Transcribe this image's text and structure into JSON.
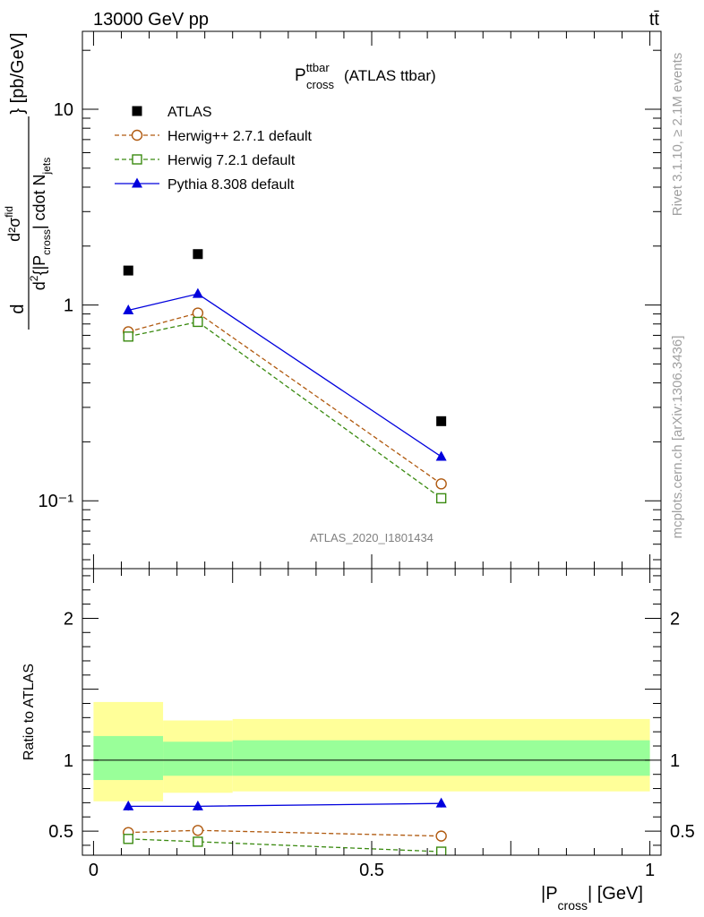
{
  "header": {
    "left": "13000 GeV pp",
    "right": "tt̄"
  },
  "side_labels": {
    "rivet": "Rivet 3.1.10, ≥ 2.1M events",
    "mcplots": "mcplots.cern.ch [arXiv:1306.3436]"
  },
  "chart_data": [
    {
      "type": "scatter",
      "title": {
        "main": "P",
        "sup": "ttbar",
        "sub": "cross",
        "suffix": "(ATLAS ttbar)"
      },
      "analysis_label": "ATLAS_2020_I1801434",
      "ylabel": "d²σᶠⁱᵈ / d²{|P_cross| cdot N_jets} [pb/GeV]",
      "ylabel_parts": {
        "num": "d²σ",
        "num_sup": "fid",
        "den_a": "d",
        "den_sup": "2",
        "den_b": "{|P",
        "den_sub1": "cross",
        "den_c": "| cdot N",
        "den_sub2": "jets",
        "tail": "} [pb/GeV]",
        "lead": "d"
      },
      "yscale": "log",
      "ylim": [
        0.045,
        25
      ],
      "xlim": [
        -0.02,
        1.02
      ],
      "yticks": [
        {
          "value": 10,
          "label": "10"
        },
        {
          "value": 1,
          "label": "1"
        },
        {
          "value": 0.1,
          "label": "10⁻¹"
        }
      ],
      "legend_position": "top-left",
      "series": [
        {
          "name": "ATLAS",
          "color": "#000000",
          "marker": "filled-square",
          "line": "none",
          "x": [
            0.0625,
            0.1875,
            0.625
          ],
          "y": [
            1.5,
            1.82,
            0.255
          ]
        },
        {
          "name": "Herwig++ 2.7.1 default",
          "color": "#b05a10",
          "marker": "open-circle",
          "line": "dashed",
          "x": [
            0.0625,
            0.1875,
            0.625
          ],
          "y": [
            0.73,
            0.91,
            0.122
          ]
        },
        {
          "name": "Herwig 7.2.1 default",
          "color": "#3a8a10",
          "marker": "open-square",
          "line": "dashed",
          "x": [
            0.0625,
            0.1875,
            0.625
          ],
          "y": [
            0.69,
            0.82,
            0.103
          ]
        },
        {
          "name": "Pythia 8.308 default",
          "color": "#0000dd",
          "marker": "filled-triangle",
          "line": "solid",
          "x": [
            0.0625,
            0.1875,
            0.625
          ],
          "y": [
            0.94,
            1.14,
            0.168
          ]
        }
      ]
    },
    {
      "type": "scatter",
      "title": "",
      "xlabel": {
        "main": "|P",
        "sub": "cross",
        "suffix": "| [GeV]"
      },
      "ylabel": "Ratio to ATLAS",
      "ylim": [
        0.33,
        2.35
      ],
      "xlim": [
        -0.02,
        1.02
      ],
      "xticks": [
        {
          "value": 0,
          "label": "0"
        },
        {
          "value": 0.5,
          "label": "0.5"
        },
        {
          "value": 1,
          "label": "1"
        }
      ],
      "yticks": [
        {
          "value": 0.5,
          "label": "0.5"
        },
        {
          "value": 1,
          "label": "1"
        },
        {
          "value": 2,
          "label": "2"
        }
      ],
      "bands": [
        {
          "x0": 0.0,
          "x1": 0.125,
          "yellow": [
            0.71,
            1.41
          ],
          "green": [
            0.86,
            1.17
          ]
        },
        {
          "x0": 0.125,
          "x1": 0.25,
          "yellow": [
            0.77,
            1.28
          ],
          "green": [
            0.89,
            1.13
          ]
        },
        {
          "x0": 0.25,
          "x1": 1.0,
          "yellow": [
            0.78,
            1.29
          ],
          "green": [
            0.89,
            1.14
          ]
        }
      ],
      "band_colors": {
        "yellow": "#ffff99",
        "green": "#99ff99"
      },
      "series": [
        {
          "name": "Pythia 8.308 default",
          "color": "#0000dd",
          "marker": "filled-triangle",
          "line": "solid",
          "x": [
            0.0625,
            0.1875,
            0.625
          ],
          "y": [
            0.675,
            0.675,
            0.695
          ],
          "err": [
            0.03,
            0.03,
            0.028
          ]
        },
        {
          "name": "Herwig++ 2.7.1 default",
          "color": "#b05a10",
          "marker": "open-circle",
          "line": "dashed",
          "x": [
            0.0625,
            0.1875,
            0.625
          ],
          "y": [
            0.49,
            0.505,
            0.465
          ],
          "err": [
            0.025,
            0.025,
            0.03
          ]
        },
        {
          "name": "Herwig 7.2.1 default",
          "color": "#3a8a10",
          "marker": "open-square",
          "line": "dashed",
          "x": [
            0.0625,
            0.1875,
            0.625
          ],
          "y": [
            0.445,
            0.425,
            0.355
          ],
          "err": [
            0.025,
            0.025,
            0.02
          ]
        }
      ]
    }
  ]
}
